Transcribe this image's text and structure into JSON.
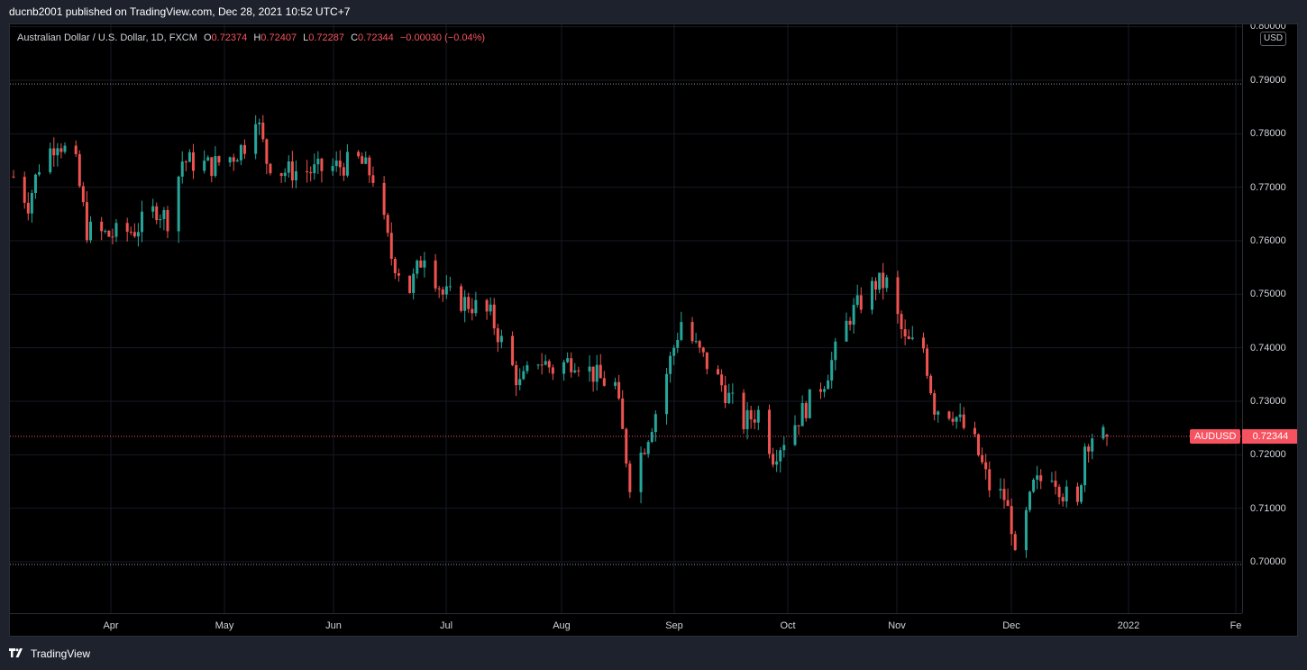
{
  "header": {
    "publisher": "ducnb2001 published on TradingView.com, Dec 28, 2021 10:52 UTC+7"
  },
  "legend": {
    "symbol": "Australian Dollar / U.S. Dollar, 1D, FXCM",
    "o_key": "O",
    "o": "0.72374",
    "h_key": "H",
    "h": "0.72407",
    "l_key": "L",
    "l": "0.72287",
    "c_key": "C",
    "c": "0.72344",
    "change": "−0.00030 (−0.04%)"
  },
  "price_axis": {
    "currency": "USD",
    "ticks": [
      "0.80000",
      "0.79000",
      "0.78000",
      "0.77000",
      "0.76000",
      "0.75000",
      "0.74000",
      "0.73000",
      "0.72000",
      "0.71000",
      "0.70000"
    ]
  },
  "time_axis": {
    "ticks": [
      "Apr",
      "May",
      "Jun",
      "Jul",
      "Aug",
      "Sep",
      "Oct",
      "Nov",
      "Dec",
      "2022",
      "Fe"
    ]
  },
  "last_price": {
    "symbol_label": "AUDUSD",
    "value": "0.72344"
  },
  "colors": {
    "up": "#26a69a",
    "down": "#ef5350",
    "background": "#000000",
    "accent": "#f7525f"
  },
  "footer": {
    "brand": "TradingView",
    "logo_icon": "tradingview-logo-icon"
  },
  "chart_data": {
    "type": "candlestick",
    "symbol": "AUDUSD",
    "interval": "1D",
    "price_range": [
      0.6925,
      0.8
    ],
    "x_range": [
      "2021-03-05",
      "2022-02-10"
    ],
    "horizontal_lines": [
      0.7893,
      0.6995
    ],
    "anchors": [
      [
        "2021-03-05",
        0.772
      ],
      [
        "2021-03-09",
        0.767
      ],
      [
        "2021-03-12",
        0.774
      ],
      [
        "2021-03-17",
        0.779
      ],
      [
        "2021-03-22",
        0.774
      ],
      [
        "2021-03-25",
        0.762
      ],
      [
        "2021-03-31",
        0.761
      ],
      [
        "2021-04-07",
        0.762
      ],
      [
        "2021-04-13",
        0.766
      ],
      [
        "2021-04-16",
        0.764
      ],
      [
        "2021-04-20",
        0.775
      ],
      [
        "2021-04-28",
        0.774
      ],
      [
        "2021-05-04",
        0.776
      ],
      [
        "2021-05-07",
        0.778
      ],
      [
        "2021-05-10",
        0.784
      ],
      [
        "2021-05-13",
        0.775
      ],
      [
        "2021-05-17",
        0.773
      ],
      [
        "2021-05-26",
        0.773
      ],
      [
        "2021-06-02",
        0.774
      ],
      [
        "2021-06-07",
        0.775
      ],
      [
        "2021-06-11",
        0.772
      ],
      [
        "2021-06-16",
        0.757
      ],
      [
        "2021-06-21",
        0.751
      ],
      [
        "2021-06-25",
        0.758
      ],
      [
        "2021-06-30",
        0.75
      ],
      [
        "2021-07-08",
        0.748
      ],
      [
        "2021-07-13",
        0.746
      ],
      [
        "2021-07-21",
        0.733
      ],
      [
        "2021-07-26",
        0.738
      ],
      [
        "2021-07-30",
        0.736
      ],
      [
        "2021-08-05",
        0.738
      ],
      [
        "2021-08-12",
        0.734
      ],
      [
        "2021-08-16",
        0.733
      ],
      [
        "2021-08-20",
        0.715
      ],
      [
        "2021-08-24",
        0.722
      ],
      [
        "2021-08-27",
        0.728
      ],
      [
        "2021-09-03",
        0.745
      ],
      [
        "2021-09-07",
        0.74
      ],
      [
        "2021-09-14",
        0.733
      ],
      [
        "2021-09-20",
        0.726
      ],
      [
        "2021-09-24",
        0.728
      ],
      [
        "2021-09-28",
        0.72
      ],
      [
        "2021-10-05",
        0.727
      ],
      [
        "2021-10-12",
        0.734
      ],
      [
        "2021-10-19",
        0.746
      ],
      [
        "2021-10-26",
        0.752
      ],
      [
        "2021-10-29",
        0.752
      ],
      [
        "2021-11-03",
        0.741
      ],
      [
        "2021-11-08",
        0.74
      ],
      [
        "2021-11-11",
        0.729
      ],
      [
        "2021-11-16",
        0.728
      ],
      [
        "2021-11-22",
        0.722
      ],
      [
        "2021-11-26",
        0.714
      ],
      [
        "2021-11-30",
        0.712
      ],
      [
        "2021-12-02",
        0.707
      ],
      [
        "2021-12-03",
        0.7
      ],
      [
        "2021-12-08",
        0.714
      ],
      [
        "2021-12-13",
        0.717
      ],
      [
        "2021-12-16",
        0.713
      ],
      [
        "2021-12-20",
        0.71
      ],
      [
        "2021-12-22",
        0.722
      ],
      [
        "2021-12-24",
        0.7237
      ],
      [
        "2021-12-28",
        0.72344
      ]
    ]
  }
}
